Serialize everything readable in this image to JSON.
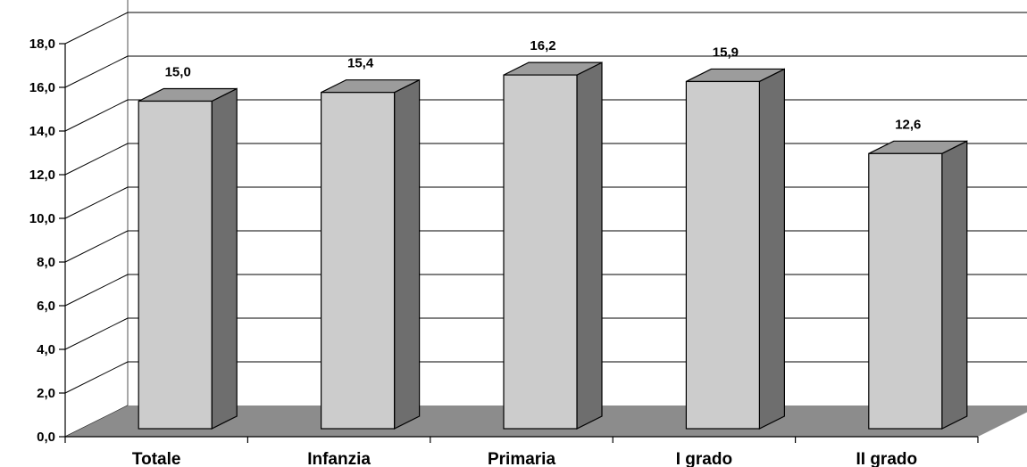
{
  "chart_data": {
    "type": "bar",
    "style": "3d-column",
    "categories": [
      "Totale",
      "Infanzia",
      "Primaria",
      "I grado",
      "II grado"
    ],
    "values": [
      15.0,
      15.4,
      16.2,
      15.9,
      12.6
    ],
    "value_labels": [
      "15,0",
      "15,4",
      "16,2",
      "15,9",
      "12,6"
    ],
    "ylim": [
      0,
      18
    ],
    "yticks": [
      0,
      2,
      4,
      6,
      8,
      10,
      12,
      14,
      16,
      18
    ],
    "ytick_labels": [
      "0,0",
      "2,0",
      "4,0",
      "6,0",
      "8,0",
      "10,0",
      "12,0",
      "14,0",
      "16,0",
      "18,0"
    ],
    "title": "",
    "xlabel": "",
    "ylabel": "",
    "grid": true,
    "legend": "none",
    "colors": {
      "bar_front": "#cccccc",
      "bar_side": "#6e6e6e",
      "bar_top": "#9c9c9c",
      "floor": "#8c8c8c",
      "grid": "#000000",
      "wall_edge": "#8c8c8c",
      "text": "#000000"
    }
  }
}
